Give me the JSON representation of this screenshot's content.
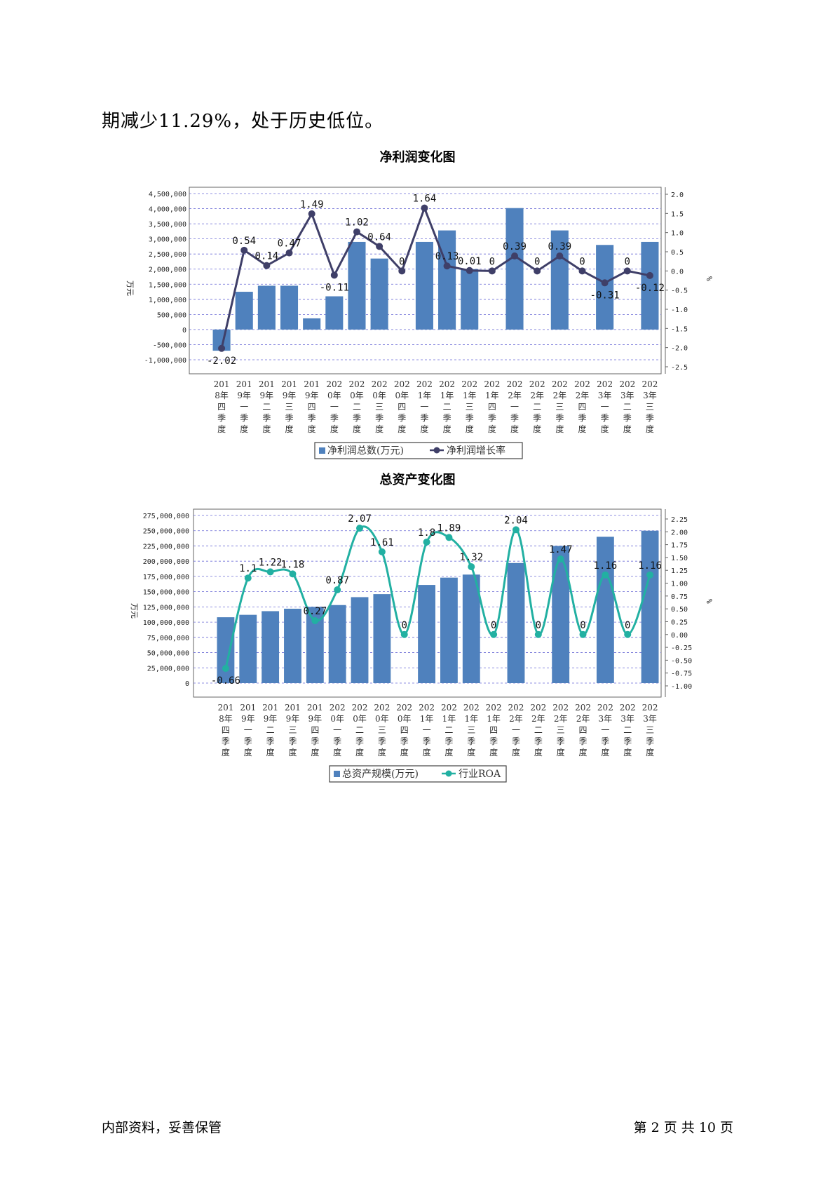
{
  "intro_text": "期减少11.29%，处于历史低位。",
  "footer": {
    "left": "内部资料，妥善保管",
    "right": "第 2 页   共 10 页"
  },
  "colors": {
    "bar": "#4f81bd",
    "line1": "#3f3f68",
    "line2": "#22b0a2",
    "grid": "#6b6bd6"
  },
  "chart_data": [
    {
      "type": "bar",
      "title": "净利润变化图",
      "ylabel_left": "万元",
      "ylabel_right": "%",
      "categories": [
        [
          "201",
          "8年",
          "四",
          "季",
          "度"
        ],
        [
          "201",
          "9年",
          "一",
          "季",
          "度"
        ],
        [
          "201",
          "9年",
          "二",
          "季",
          "度"
        ],
        [
          "201",
          "9年",
          "三",
          "季",
          "度"
        ],
        [
          "201",
          "9年",
          "四",
          "季",
          "度"
        ],
        [
          "202",
          "0年",
          "一",
          "季",
          "度"
        ],
        [
          "202",
          "0年",
          "二",
          "季",
          "度"
        ],
        [
          "202",
          "0年",
          "三",
          "季",
          "度"
        ],
        [
          "202",
          "0年",
          "四",
          "季",
          "度"
        ],
        [
          "202",
          "1年",
          "一",
          "季",
          "度"
        ],
        [
          "202",
          "1年",
          "二",
          "季",
          "度"
        ],
        [
          "202",
          "1年",
          "三",
          "季",
          "度"
        ],
        [
          "202",
          "1年",
          "四",
          "季",
          "度"
        ],
        [
          "202",
          "2年",
          "一",
          "季",
          "度"
        ],
        [
          "202",
          "2年",
          "二",
          "季",
          "度"
        ],
        [
          "202",
          "2年",
          "三",
          "季",
          "度"
        ],
        [
          "202",
          "2年",
          "四",
          "季",
          "度"
        ],
        [
          "202",
          "3年",
          "一",
          "季",
          "度"
        ],
        [
          "202",
          "3年",
          "二",
          "季",
          "度"
        ],
        [
          "202",
          "3年",
          "三",
          "季",
          "度"
        ]
      ],
      "left_axis": {
        "ticks": [
          -1000000,
          -500000,
          0,
          500000,
          1000000,
          1500000,
          2000000,
          2500000,
          3000000,
          3500000,
          4000000,
          4500000
        ],
        "tick_labels": [
          "-1,000,000",
          "-500,000",
          "0",
          "500,000",
          "1,000,000",
          "1,500,000",
          "2,000,000",
          "2,500,000",
          "3,000,000",
          "3,500,000",
          "4,000,000",
          "4,500,000"
        ]
      },
      "right_axis": {
        "ticks": [
          -2.5,
          -2.0,
          -1.5,
          -1.0,
          -0.5,
          0.0,
          0.5,
          1.0,
          1.5,
          2.0
        ],
        "tick_labels": [
          "-2.5",
          "-2.0",
          "-1.5",
          "-1.0",
          "-0.5",
          "0.0",
          "0.5",
          "1.0",
          "1.5",
          "2.0"
        ]
      },
      "series": [
        {
          "name": "净利润总数(万元)",
          "kind": "bar",
          "values": [
            -700000,
            1250000,
            1450000,
            1450000,
            370000,
            1100000,
            2900000,
            2350000,
            0,
            2900000,
            3280000,
            2000000,
            0,
            4020000,
            0,
            3280000,
            0,
            2800000,
            0,
            2900000
          ]
        },
        {
          "name": "净利润增长率",
          "kind": "line",
          "values": [
            -2.02,
            0.54,
            0.14,
            0.47,
            1.49,
            -0.11,
            1.02,
            0.64,
            0,
            1.64,
            0.13,
            0.01,
            0,
            0.39,
            0,
            0.39,
            0,
            -0.31,
            0,
            -0.12
          ],
          "labels": [
            "-2.02",
            "0.54",
            "0.14",
            "0.47",
            "1.49",
            "-0.11",
            "1.02",
            "0.64",
            "0",
            "1.64",
            "0.13",
            "0.01",
            "0",
            "0.39",
            "0",
            "0.39",
            "0",
            "-0.31",
            "0",
            "-0.12"
          ]
        }
      ]
    },
    {
      "type": "bar",
      "title": "总资产变化图",
      "ylabel_left": "万元",
      "ylabel_right": "%",
      "categories": [
        [
          "201",
          "8年",
          "四",
          "季",
          "度"
        ],
        [
          "201",
          "9年",
          "一",
          "季",
          "度"
        ],
        [
          "201",
          "9年",
          "二",
          "季",
          "度"
        ],
        [
          "201",
          "9年",
          "三",
          "季",
          "度"
        ],
        [
          "201",
          "9年",
          "四",
          "季",
          "度"
        ],
        [
          "202",
          "0年",
          "一",
          "季",
          "度"
        ],
        [
          "202",
          "0年",
          "二",
          "季",
          "度"
        ],
        [
          "202",
          "0年",
          "三",
          "季",
          "度"
        ],
        [
          "202",
          "0年",
          "四",
          "季",
          "度"
        ],
        [
          "202",
          "1年",
          "一",
          "季",
          "度"
        ],
        [
          "202",
          "1年",
          "二",
          "季",
          "度"
        ],
        [
          "202",
          "1年",
          "三",
          "季",
          "度"
        ],
        [
          "202",
          "1年",
          "四",
          "季",
          "度"
        ],
        [
          "202",
          "2年",
          "一",
          "季",
          "度"
        ],
        [
          "202",
          "2年",
          "二",
          "季",
          "度"
        ],
        [
          "202",
          "2年",
          "三",
          "季",
          "度"
        ],
        [
          "202",
          "2年",
          "四",
          "季",
          "度"
        ],
        [
          "202",
          "3年",
          "一",
          "季",
          "度"
        ],
        [
          "202",
          "3年",
          "二",
          "季",
          "度"
        ],
        [
          "202",
          "3年",
          "三",
          "季",
          "度"
        ]
      ],
      "left_axis": {
        "ticks": [
          0,
          25000000,
          50000000,
          75000000,
          100000000,
          125000000,
          150000000,
          175000000,
          200000000,
          225000000,
          250000000,
          275000000
        ],
        "tick_labels": [
          "0",
          "25,000,000",
          "50,000,000",
          "75,000,000",
          "100,000,000",
          "125,000,000",
          "150,000,000",
          "175,000,000",
          "200,000,000",
          "225,000,000",
          "250,000,000",
          "275,000,000"
        ]
      },
      "right_axis": {
        "ticks": [
          -1.0,
          -0.75,
          -0.5,
          -0.25,
          0.0,
          0.25,
          0.5,
          0.75,
          1.0,
          1.25,
          1.5,
          1.75,
          2.0,
          2.25
        ],
        "tick_labels": [
          "-1.00",
          "-0.75",
          "-0.50",
          "-0.25",
          "0.00",
          "0.25",
          "0.50",
          "0.75",
          "1.00",
          "1.25",
          "1.50",
          "1.75",
          "2.00",
          "2.25"
        ]
      },
      "series": [
        {
          "name": "总资产规模(万元)",
          "kind": "bar",
          "values": [
            108000000,
            112000000,
            118000000,
            122000000,
            125000000,
            128000000,
            141000000,
            146000000,
            0,
            161000000,
            173000000,
            178000000,
            0,
            197000000,
            0,
            225000000,
            0,
            240000000,
            0,
            250000000
          ]
        },
        {
          "name": "行业ROA",
          "kind": "line",
          "values": [
            -0.66,
            1.1,
            1.22,
            1.18,
            0.27,
            0.87,
            2.07,
            1.61,
            0,
            1.8,
            1.89,
            1.32,
            0,
            2.04,
            0,
            1.47,
            0,
            1.16,
            0,
            1.16
          ],
          "labels": [
            "-0.66",
            "1.1",
            "1.22",
            "1.18",
            "0.27",
            "0.87",
            "2.07",
            "1.61",
            "0",
            "1.8",
            "1.89",
            "1.32",
            "0",
            "2.04",
            "0",
            "1.47",
            "0",
            "1.16",
            "0",
            "1.16"
          ]
        }
      ]
    }
  ]
}
